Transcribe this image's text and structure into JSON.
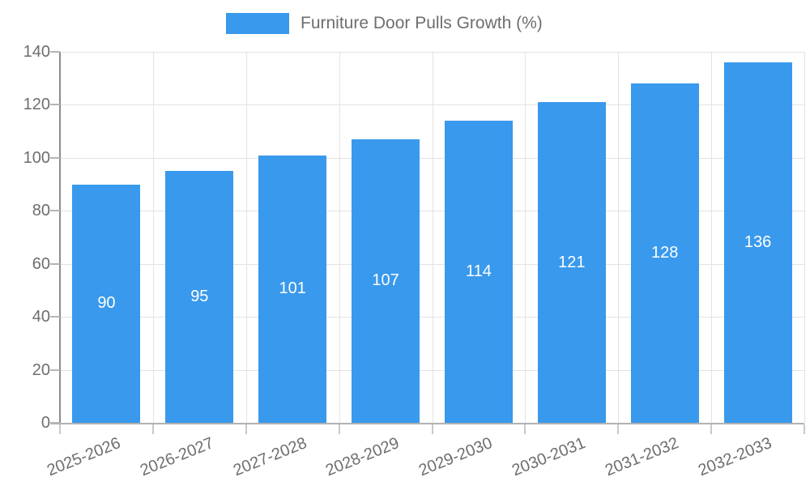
{
  "legend": {
    "label": "Furniture Door Pulls Growth (%)"
  },
  "chart_data": {
    "type": "bar",
    "title": "Furniture Door Pulls Growth (%)",
    "categories": [
      "2025-2026",
      "2026-2027",
      "2027-2028",
      "2028-2029",
      "2029-2030",
      "2030-2031",
      "2031-2032",
      "2032-2033"
    ],
    "values": [
      90,
      95,
      101,
      107,
      114,
      121,
      128,
      136
    ],
    "series": [
      {
        "name": "Furniture Door Pulls Growth (%)",
        "values": [
          90,
          95,
          101,
          107,
          114,
          121,
          128,
          136
        ]
      }
    ],
    "xlabel": "",
    "ylabel": "",
    "ylim": [
      0,
      140
    ],
    "yticks": [
      0,
      20,
      40,
      60,
      80,
      100,
      120,
      140
    ],
    "grid": true,
    "legend_position": "top-center",
    "value_labels_inside_bars": true,
    "bar_color": "#3999EC",
    "value_label_color": "#FFFFFF",
    "axis_text_color": "#6E6E6E",
    "gridline_color": "#E3E3E3"
  }
}
